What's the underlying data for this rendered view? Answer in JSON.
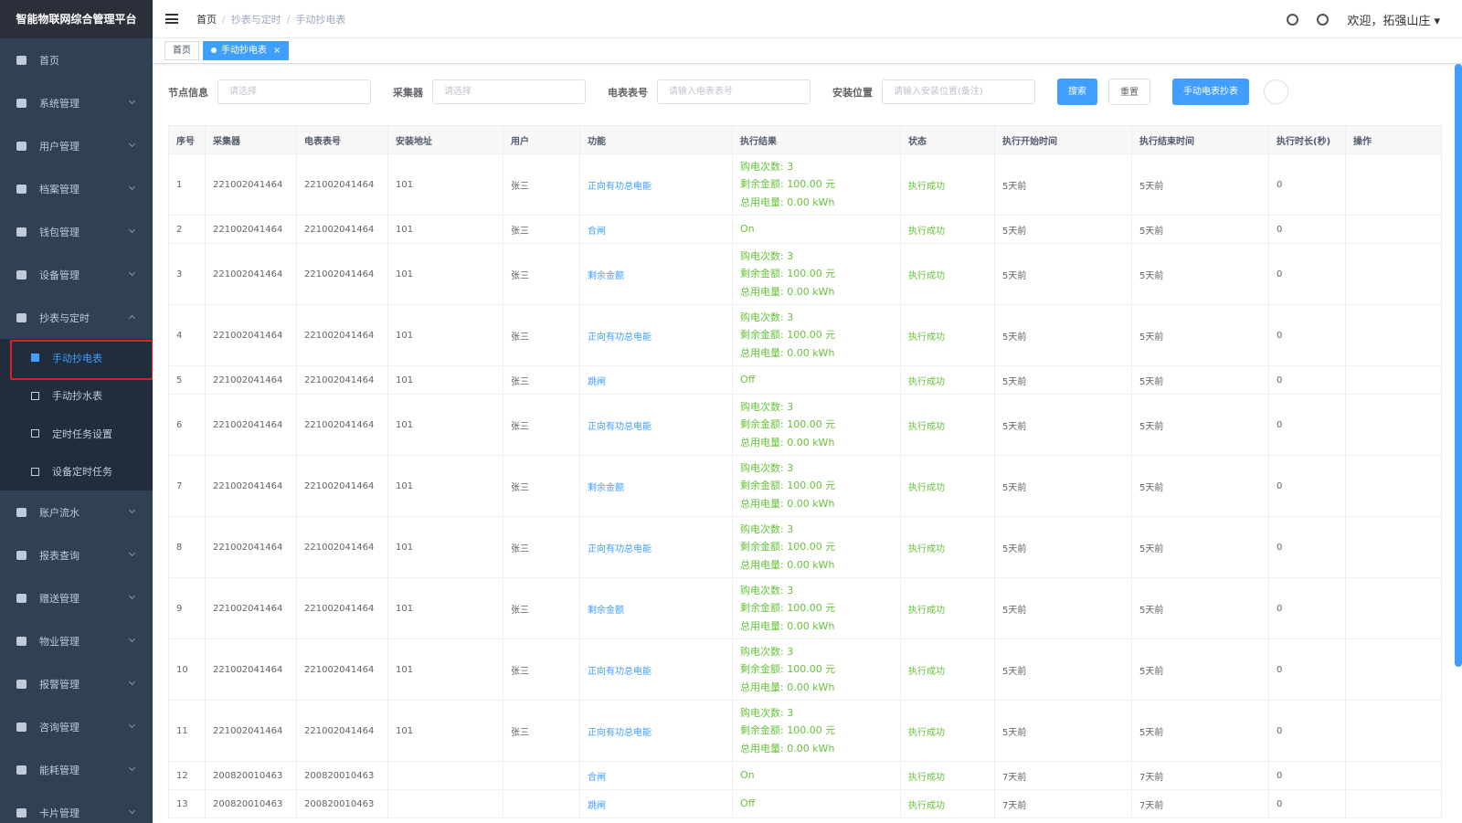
{
  "sidebar": {
    "title": "智能物联网综合管理平台",
    "menu": [
      {
        "label": "首页"
      },
      {
        "label": "系统管理"
      },
      {
        "label": "用户管理"
      },
      {
        "label": "档案管理"
      },
      {
        "label": "钱包管理"
      },
      {
        "label": "设备管理"
      },
      {
        "label": "抄表与定时",
        "children": [
          "手动抄电表",
          "手动抄水表",
          "定时任务设置",
          "设备定时任务"
        ]
      },
      {
        "label": "账户流水"
      },
      {
        "label": "报表查询"
      },
      {
        "label": "赠送管理"
      },
      {
        "label": "物业管理"
      },
      {
        "label": "报警管理"
      },
      {
        "label": "咨询管理"
      },
      {
        "label": "能耗管理"
      },
      {
        "label": "卡片管理"
      }
    ]
  },
  "header": {
    "breadcrumb": [
      "首页",
      "抄表与定时",
      "手动抄电表"
    ],
    "welcome": "欢迎，拓强山庄"
  },
  "tabs": [
    "首页",
    "手动抄电表"
  ],
  "filters": [
    {
      "label": "节点信息",
      "placeholder": "请选择"
    },
    {
      "label": "采集器",
      "placeholder": "请选择"
    },
    {
      "label": "电表表号",
      "placeholder": "请输入电表表号"
    },
    {
      "label": "安装位置",
      "placeholder": "请输入安装位置(备注)"
    }
  ],
  "buttons": {
    "search": "搜索",
    "reset": "重置",
    "manual": "手动电表抄表"
  },
  "table": {
    "columns": [
      "序号",
      "采集器",
      "电表表号",
      "安装地址",
      "用户",
      "功能",
      "执行结果",
      "状态",
      "执行开始时间",
      "执行结束时间",
      "执行时长(秒)",
      "操作"
    ],
    "rows": [
      [
        "1",
        "221002041464",
        "221002041464",
        "101",
        "张三",
        "正向有功总电能",
        [
          "购电次数: 3",
          "剩余金额: 100.00 元",
          "总用电量: 0.00 kWh"
        ],
        "执行成功",
        "5天前",
        "5天前",
        "0"
      ],
      [
        "2",
        "221002041464",
        "221002041464",
        "101",
        "张三",
        "合闸",
        [
          "On"
        ],
        "执行成功",
        "5天前",
        "5天前",
        "0"
      ],
      [
        "3",
        "221002041464",
        "221002041464",
        "101",
        "张三",
        "剩余金额",
        [
          "购电次数: 3",
          "剩余金额: 100.00 元",
          "总用电量: 0.00 kWh"
        ],
        "执行成功",
        "5天前",
        "5天前",
        "0"
      ],
      [
        "4",
        "221002041464",
        "221002041464",
        "101",
        "张三",
        "正向有功总电能",
        [
          "购电次数: 3",
          "剩余金额: 100.00 元",
          "总用电量: 0.00 kWh"
        ],
        "执行成功",
        "5天前",
        "5天前",
        "0"
      ],
      [
        "5",
        "221002041464",
        "221002041464",
        "101",
        "张三",
        "跳闸",
        [
          "Off"
        ],
        "执行成功",
        "5天前",
        "5天前",
        "0"
      ],
      [
        "6",
        "221002041464",
        "221002041464",
        "101",
        "张三",
        "正向有功总电能",
        [
          "购电次数: 3",
          "剩余金额: 100.00 元",
          "总用电量: 0.00 kWh"
        ],
        "执行成功",
        "5天前",
        "5天前",
        "0"
      ],
      [
        "7",
        "221002041464",
        "221002041464",
        "101",
        "张三",
        "剩余金额",
        [
          "购电次数: 3",
          "剩余金额: 100.00 元",
          "总用电量: 0.00 kWh"
        ],
        "执行成功",
        "5天前",
        "5天前",
        "0"
      ],
      [
        "8",
        "221002041464",
        "221002041464",
        "101",
        "张三",
        "正向有功总电能",
        [
          "购电次数: 3",
          "剩余金额: 100.00 元",
          "总用电量: 0.00 kWh"
        ],
        "执行成功",
        "5天前",
        "5天前",
        "0"
      ],
      [
        "9",
        "221002041464",
        "221002041464",
        "101",
        "张三",
        "剩余金额",
        [
          "购电次数: 3",
          "剩余金额: 100.00 元",
          "总用电量: 0.00 kWh"
        ],
        "执行成功",
        "5天前",
        "5天前",
        "0"
      ],
      [
        "10",
        "221002041464",
        "221002041464",
        "101",
        "张三",
        "正向有功总电能",
        [
          "购电次数: 3",
          "剩余金额: 100.00 元",
          "总用电量: 0.00 kWh"
        ],
        "执行成功",
        "5天前",
        "5天前",
        "0"
      ],
      [
        "11",
        "221002041464",
        "221002041464",
        "101",
        "张三",
        "正向有功总电能",
        [
          "购电次数: 3",
          "剩余金额: 100.00 元",
          "总用电量: 0.00 kWh"
        ],
        "执行成功",
        "5天前",
        "5天前",
        "0"
      ],
      [
        "12",
        "200820010463",
        "200820010463",
        null,
        null,
        "合闸",
        [
          "On"
        ],
        "执行成功",
        "7天前",
        "7天前",
        "0"
      ],
      [
        "13",
        "200820010463",
        "200820010463",
        null,
        null,
        "跳闸",
        [
          "Off"
        ],
        "执行成功",
        "7天前",
        "7天前",
        "0"
      ]
    ]
  }
}
